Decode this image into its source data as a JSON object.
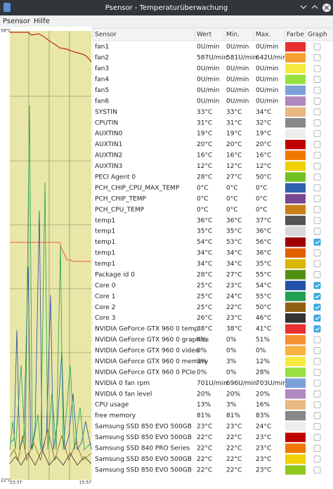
{
  "window": {
    "title": "Psensor - Temperaturüberwachung"
  },
  "menu": [
    "Psensor",
    "Hilfe"
  ],
  "graph": {
    "max_label": "58°C",
    "min_label": "22°C",
    "start_time": "15:37",
    "end_time": "15:57"
  },
  "table": {
    "columns": [
      "Sensor",
      "Wert",
      "Min.",
      "Max.",
      "Farbe",
      "Graph"
    ],
    "rows": [
      {
        "sensor": "fan1",
        "value": "0U/min",
        "min": "0U/min",
        "max": "0U/min",
        "color": "#e83030",
        "graph": false
      },
      {
        "sensor": "fan2",
        "value": "587U/min",
        "min": "581U/min",
        "max": "642U/min",
        "color": "#f5a030",
        "graph": false
      },
      {
        "sensor": "fan3",
        "value": "0U/min",
        "min": "0U/min",
        "max": "0U/min",
        "color": "#f7e840",
        "graph": false
      },
      {
        "sensor": "fan4",
        "value": "0U/min",
        "min": "0U/min",
        "max": "0U/min",
        "color": "#98e040",
        "graph": false
      },
      {
        "sensor": "fan5",
        "value": "0U/min",
        "min": "0U/min",
        "max": "0U/min",
        "color": "#7ca0d8",
        "graph": false
      },
      {
        "sensor": "fan6",
        "value": "0U/min",
        "min": "0U/min",
        "max": "0U/min",
        "color": "#b088c0",
        "graph": false
      },
      {
        "sensor": "SYSTIN",
        "value": "33°C",
        "min": "33°C",
        "max": "34°C",
        "color": "#e8b880",
        "graph": false
      },
      {
        "sensor": "CPUTIN",
        "value": "31°C",
        "min": "31°C",
        "max": "32°C",
        "color": "#888888",
        "graph": false
      },
      {
        "sensor": "AUXTIN0",
        "value": "19°C",
        "min": "19°C",
        "max": "19°C",
        "color": "#eeeeee",
        "graph": false
      },
      {
        "sensor": "AUXTIN1",
        "value": "20°C",
        "min": "20°C",
        "max": "20°C",
        "color": "#c00000",
        "graph": false
      },
      {
        "sensor": "AUXTIN2",
        "value": "16°C",
        "min": "16°C",
        "max": "16°C",
        "color": "#f07800",
        "graph": false
      },
      {
        "sensor": "AUXTIN3",
        "value": "12°C",
        "min": "12°C",
        "max": "12°C",
        "color": "#f0d000",
        "graph": false
      },
      {
        "sensor": "PECI Agent 0",
        "value": "28°C",
        "min": "27°C",
        "max": "50°C",
        "color": "#70c020",
        "graph": false
      },
      {
        "sensor": "PCH_CHIP_CPU_MAX_TEMP",
        "value": "0°C",
        "min": "0°C",
        "max": "0°C",
        "color": "#3060b0",
        "graph": false
      },
      {
        "sensor": "PCH_CHIP_TEMP",
        "value": "0°C",
        "min": "0°C",
        "max": "0°C",
        "color": "#784890",
        "graph": false
      },
      {
        "sensor": "PCH_CPU_TEMP",
        "value": "0°C",
        "min": "0°C",
        "max": "0°C",
        "color": "#c88018",
        "graph": false
      },
      {
        "sensor": "temp1",
        "value": "36°C",
        "min": "36°C",
        "max": "37°C",
        "color": "#555555",
        "graph": false
      },
      {
        "sensor": "temp1",
        "value": "35°C",
        "min": "35°C",
        "max": "36°C",
        "color": "#d8d8d8",
        "graph": false
      },
      {
        "sensor": "temp1",
        "value": "54°C",
        "min": "53°C",
        "max": "56°C",
        "color": "#a00000",
        "graph": true
      },
      {
        "sensor": "temp1",
        "value": "34°C",
        "min": "34°C",
        "max": "36°C",
        "color": "#e06000",
        "graph": false
      },
      {
        "sensor": "temp1",
        "value": "34°C",
        "min": "34°C",
        "max": "35°C",
        "color": "#d8b800",
        "graph": false
      },
      {
        "sensor": "Package id 0",
        "value": "28°C",
        "min": "27°C",
        "max": "55°C",
        "color": "#509010",
        "graph": false
      },
      {
        "sensor": "Core 0",
        "value": "25°C",
        "min": "23°C",
        "max": "54°C",
        "color": "#2050a8",
        "graph": true
      },
      {
        "sensor": "Core 1",
        "value": "25°C",
        "min": "24°C",
        "max": "55°C",
        "color": "#20a050",
        "graph": true
      },
      {
        "sensor": "Core 2",
        "value": "25°C",
        "min": "22°C",
        "max": "50°C",
        "color": "#906010",
        "graph": true
      },
      {
        "sensor": "Core 3",
        "value": "26°C",
        "min": "23°C",
        "max": "46°C",
        "color": "#333333",
        "graph": true
      },
      {
        "sensor": "NVIDIA GeForce GTX 960 0 temp",
        "value": "38°C",
        "min": "38°C",
        "max": "41°C",
        "color": "#e83030",
        "graph": true
      },
      {
        "sensor": "NVIDIA GeForce GTX 960 0 graphics",
        "value": "4%",
        "min": "0%",
        "max": "51%",
        "color": "#f59030",
        "graph": false
      },
      {
        "sensor": "NVIDIA GeForce GTX 960 0 video",
        "value": "0%",
        "min": "0%",
        "max": "0%",
        "color": "#f8b040",
        "graph": false
      },
      {
        "sensor": "NVIDIA GeForce GTX 960 0 memory",
        "value": "3%",
        "min": "3%",
        "max": "12%",
        "color": "#f7e840",
        "graph": false
      },
      {
        "sensor": "NVIDIA GeForce GTX 960 0 PCIe",
        "value": "0%",
        "min": "0%",
        "max": "28%",
        "color": "#98e040",
        "graph": false
      },
      {
        "sensor": "NVIDIA 0 fan rpm",
        "value": "701U/min",
        "min": "696U/min",
        "max": "703U/min",
        "color": "#7ca0d8",
        "graph": false
      },
      {
        "sensor": "NVIDIA 0 fan level",
        "value": "20%",
        "min": "20%",
        "max": "20%",
        "color": "#b088c0",
        "graph": false
      },
      {
        "sensor": "CPU usage",
        "value": "13%",
        "min": "3%",
        "max": "16%",
        "color": "#e8b880",
        "graph": false
      },
      {
        "sensor": "free memory",
        "value": "81%",
        "min": "81%",
        "max": "83%",
        "color": "#888888",
        "graph": false
      },
      {
        "sensor": "Samsung SSD 850 EVO 500GB",
        "value": "23°C",
        "min": "23°C",
        "max": "24°C",
        "color": "#eeeeee",
        "graph": false
      },
      {
        "sensor": "Samsung SSD 850 EVO 500GB",
        "value": "22°C",
        "min": "22°C",
        "max": "23°C",
        "color": "#c00000",
        "graph": false
      },
      {
        "sensor": "Samsung SSD 840 PRO Series",
        "value": "22°C",
        "min": "22°C",
        "max": "23°C",
        "color": "#f07800",
        "graph": false
      },
      {
        "sensor": "Samsung SSD 850 EVO 500GB",
        "value": "22°C",
        "min": "22°C",
        "max": "23°C",
        "color": "#f0d000",
        "graph": false
      },
      {
        "sensor": "Samsung SSD 850 EVO 500GB",
        "value": "22°C",
        "min": "22°C",
        "max": "23°C",
        "color": "#90c820",
        "graph": false
      }
    ]
  }
}
